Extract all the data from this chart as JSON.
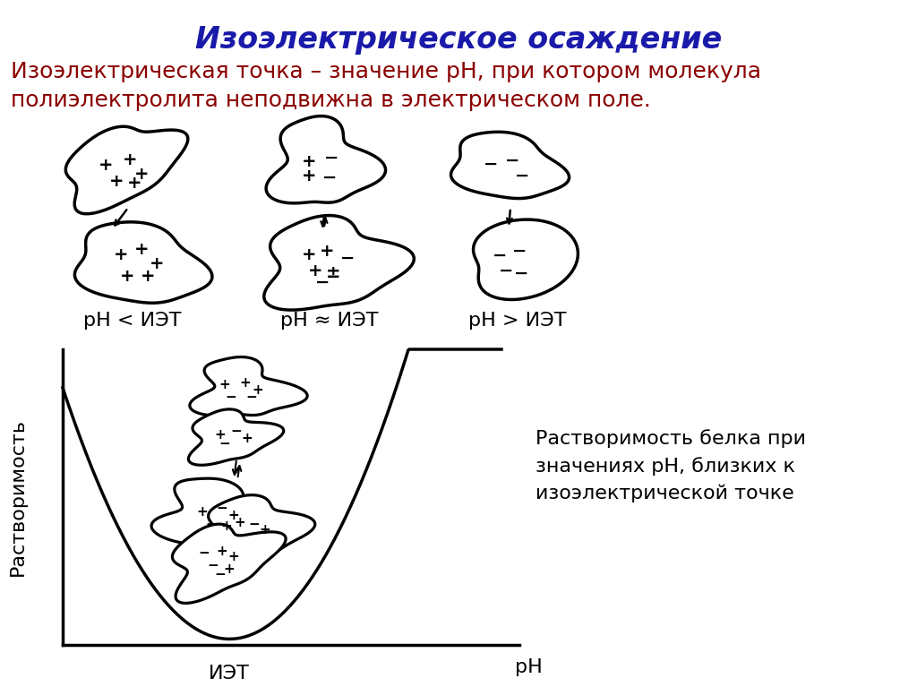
{
  "title": "Изоэлектрическое осаждение",
  "title_color": "#1a1aaa",
  "subtitle_line1": "Изоэлектрическая точка – значение pH, при котором молекула",
  "subtitle_line2": "полиэлектролита неподвижна в электрическом поле.",
  "subtitle_color": "#8B0000",
  "label_ph_less": "pH < ИЭТ",
  "label_ph_approx": "pH ≈ ИЭТ",
  "label_ph_greater": "pH > ИЭТ",
  "ylabel": "Растворимость",
  "xlabel_iet": "ИЭТ",
  "xlabel_ph": "pH",
  "annotation": "Растворимость белка при\nзначениях pH, близких к\nизоэлектрической точке",
  "bg_color": "#ffffff",
  "curve_color": "#000000",
  "text_color": "#000000",
  "label_fontsize": 16,
  "charge_fontsize": 14,
  "title_fontsize": 24,
  "subtitle_fontsize": 18
}
